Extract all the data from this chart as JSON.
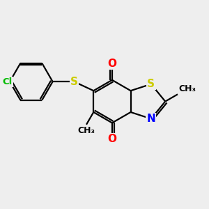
{
  "bg_color": "#eeeeee",
  "bond_color": "#000000",
  "atom_colors": {
    "S": "#cccc00",
    "N": "#0000ff",
    "O": "#ff0000",
    "Cl": "#00bb00",
    "C": "#000000"
  },
  "line_width": 1.6,
  "font_size": 11,
  "small_font_size": 9.5
}
